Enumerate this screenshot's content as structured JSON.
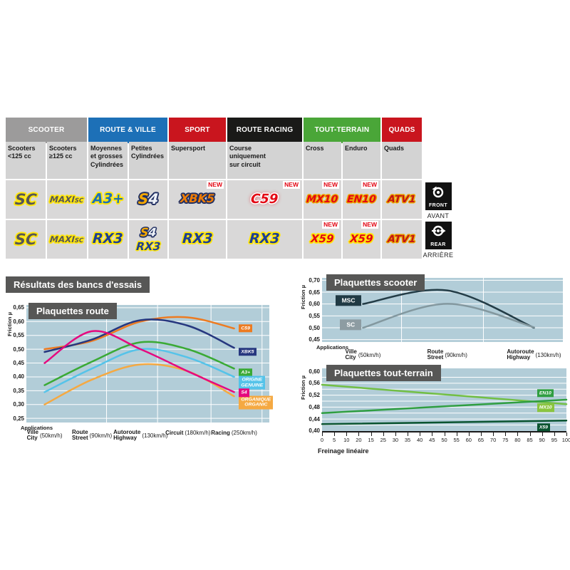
{
  "section_title": "Résultats des bancs d'essais",
  "position_badges": {
    "front": {
      "label": "FRONT",
      "sub": "AVANT"
    },
    "rear": {
      "label": "REAR",
      "sub": "ARRIÈRE"
    }
  },
  "table": {
    "category_headers": [
      {
        "label": "SCOOTER",
        "bg": "#9c9b9b",
        "span": 2
      },
      {
        "label": "ROUTE & VILLE",
        "bg": "#1d70b7",
        "span": 2
      },
      {
        "label": "SPORT",
        "bg": "#c9151e",
        "span": 1
      },
      {
        "label": "ROUTE RACING",
        "bg": "#1a1a18",
        "span": 1
      },
      {
        "label": "TOUT-TERRAIN",
        "bg": "#4aa638",
        "span": 2
      },
      {
        "label": "QUADS",
        "bg": "#c9151e",
        "span": 1
      }
    ],
    "subheaders": [
      "Scooters\n<125 cc",
      "Scooters\n≥125 cc",
      "Moyennes\net grosses\nCylindrées",
      "Petites\nCylindrées",
      "Supersport",
      "Course\nuniquement\nsur circuit",
      "Cross",
      "Enduro",
      "Quads"
    ],
    "new_badge_label": "NEW",
    "rows": [
      {
        "id": "front",
        "cells": [
          [
            "SC"
          ],
          [
            "MAXI_SC"
          ],
          [
            "A3_PLUS"
          ],
          [
            "S4"
          ],
          [
            "XBK5"
          ],
          [
            "C59"
          ],
          [
            "MX10"
          ],
          [
            "EN10"
          ],
          [
            "ATV1"
          ]
        ],
        "new_flags": [
          false,
          false,
          false,
          false,
          true,
          true,
          true,
          true,
          false
        ]
      },
      {
        "id": "rear",
        "cells": [
          [
            "SC"
          ],
          [
            "MAXI_SC"
          ],
          [
            "RX3"
          ],
          [
            "S4",
            "RX3"
          ],
          [
            "RX3"
          ],
          [
            "RX3"
          ],
          [
            "X59"
          ],
          [
            "X59"
          ],
          [
            "ATV1"
          ]
        ],
        "new_flags": [
          false,
          false,
          false,
          false,
          false,
          false,
          true,
          true,
          false
        ]
      }
    ],
    "products": {
      "SC": {
        "text": "SC"
      },
      "MAXI_SC": {
        "parts": [
          [
            "MAXI",
            "maxi-main"
          ],
          [
            "SC",
            "maxi-sub"
          ]
        ]
      },
      "A3_PLUS": {
        "text": "A3+"
      },
      "S4": {
        "parts": [
          [
            "S",
            "s4-s"
          ],
          [
            "4",
            "s4-4"
          ]
        ]
      },
      "XBK5": {
        "text": "XBK5"
      },
      "C59": {
        "text": "C59"
      },
      "MX10": {
        "text": "MX10"
      },
      "EN10": {
        "text": "EN10"
      },
      "ATV1": {
        "text": "ATV1"
      },
      "RX3": {
        "text": "RX3"
      },
      "X59": {
        "text": "X59"
      }
    }
  },
  "chart_data": [
    {
      "id": "route",
      "type": "line",
      "title": "Plaquettes route",
      "ylabel": "Friction µ",
      "x_note": "Applications",
      "ylim": [
        0.25,
        0.65
      ],
      "grid": true,
      "legend_position": "right-of-line-ends",
      "yticks": [
        {
          "v": 0.65,
          "label": "0,65"
        },
        {
          "v": 0.6,
          "label": "0,60"
        },
        {
          "v": 0.55,
          "label": "0,55"
        },
        {
          "v": 0.5,
          "label": "0,50"
        },
        {
          "v": 0.45,
          "label": "0,45"
        },
        {
          "v": 0.4,
          "label": "0,40"
        },
        {
          "v": 0.35,
          "label": "0,35"
        },
        {
          "v": 0.3,
          "label": "0,30"
        },
        {
          "v": 0.25,
          "label": "0,25"
        }
      ],
      "categories": [
        {
          "fr": "Ville",
          "en": "City",
          "speed": "(50km/h)"
        },
        {
          "fr": "Route",
          "en": "Street",
          "speed": "(90km/h)"
        },
        {
          "fr": "Autoroute",
          "en": "Highway",
          "speed": "(130km/h)"
        },
        {
          "fr": "Circuit",
          "en": "",
          "speed": "(180km/h)"
        },
        {
          "fr": "Racing",
          "en": "",
          "speed": "(250km/h)"
        }
      ],
      "series": [
        {
          "name": "C59",
          "color": "#ed7b21",
          "label_lines": [
            "C59"
          ],
          "label_bg": "#ed7b21",
          "label_y": 0.575,
          "values": [
            0.5,
            0.53,
            0.6,
            0.615,
            0.575
          ]
        },
        {
          "name": "XBK5",
          "color": "#26377f",
          "label_lines": [
            "XBK5"
          ],
          "label_bg": "#26377f",
          "label_y": 0.49,
          "values": [
            0.49,
            0.535,
            0.605,
            0.585,
            0.505
          ]
        },
        {
          "name": "A3+",
          "color": "#3aaa35",
          "label_lines": [
            "A3+"
          ],
          "label_bg": "#3aaa35",
          "label_y": 0.415,
          "values": [
            0.37,
            0.455,
            0.525,
            0.5,
            0.43
          ]
        },
        {
          "name": "ORIGINE GENUINE",
          "color": "#55c3e9",
          "label_lines": [
            "ORIGINE",
            "GENUINE"
          ],
          "label_bg": "#55c3e9",
          "label_y": 0.378,
          "values": [
            0.345,
            0.43,
            0.5,
            0.47,
            0.4
          ]
        },
        {
          "name": "ORGANIQUE ORGANIC",
          "color": "#f5a942",
          "label_lines": [
            "ORGANIQUE",
            "ORGANIC"
          ],
          "label_bg": "#f5a942",
          "label_y": 0.308,
          "values": [
            0.3,
            0.39,
            0.445,
            0.42,
            0.33
          ]
        },
        {
          "name": "S4",
          "color": "#e5097f",
          "label_lines": [
            "S4"
          ],
          "label_bg": "#e5097f",
          "label_y": 0.342,
          "values": [
            0.45,
            0.565,
            0.5,
            0.42,
            0.345
          ]
        }
      ]
    },
    {
      "id": "scooter",
      "type": "line",
      "title": "Plaquettes scooter",
      "ylabel": "Friction µ",
      "x_note": "Applications",
      "ylim": [
        0.45,
        0.7
      ],
      "grid": true,
      "legend_position": "left-of-line-starts",
      "yticks": [
        {
          "v": 0.7,
          "label": "0,70"
        },
        {
          "v": 0.65,
          "label": "0,65"
        },
        {
          "v": 0.6,
          "label": "0,60"
        },
        {
          "v": 0.55,
          "label": "0,55"
        },
        {
          "v": 0.5,
          "label": "0,50"
        },
        {
          "v": 0.45,
          "label": "0,45"
        }
      ],
      "categories": [
        {
          "fr": "Ville",
          "en": "City",
          "speed": "(50km/h)"
        },
        {
          "fr": "Route",
          "en": "Street",
          "speed": "(90km/h)"
        },
        {
          "fr": "Autoroute",
          "en": "Highway",
          "speed": "(130km/h)"
        }
      ],
      "series": [
        {
          "name": "MSC",
          "color": "#233c46",
          "label_lines": [
            "MSC"
          ],
          "label_bg": "#203a44",
          "label_y": 0.615,
          "label_x": 0.055,
          "values": [
            0.6,
            0.657,
            0.5
          ]
        },
        {
          "name": "SC",
          "color": "#83989f",
          "label_lines": [
            "SC"
          ],
          "label_bg": "#8d9ca2",
          "label_y": 0.512,
          "label_x": 0.075,
          "values": [
            0.5,
            0.601,
            0.502
          ]
        }
      ]
    },
    {
      "id": "tout-terrain",
      "type": "line",
      "title": "Plaquettes tout-terrain",
      "ylabel": "Friction µ",
      "xlabel": "Freinage linéaire",
      "ylim": [
        0.4,
        0.6
      ],
      "grid": true,
      "legend_position": "right",
      "yticks": [
        {
          "v": 0.6,
          "label": "0,60"
        },
        {
          "v": 0.56,
          "label": "0,56"
        },
        {
          "v": 0.52,
          "label": "0,52"
        },
        {
          "v": 0.48,
          "label": "0,48"
        },
        {
          "v": 0.44,
          "label": "0,44"
        },
        {
          "v": 0.4,
          "label": "0,40"
        }
      ],
      "xticks": [
        "0",
        "5",
        "10",
        "20",
        "15",
        "25",
        "30",
        "35",
        "40",
        "45",
        "50",
        "55",
        "60",
        "65",
        "70",
        "75",
        "80",
        "85",
        "90",
        "95",
        "100"
      ],
      "series": [
        {
          "name": "MX10",
          "color": "#72bf44",
          "label_lines": [
            "MX10"
          ],
          "label_bg": "#8bc53f",
          "label_y": 0.478,
          "values": [
            0.555,
            0.49
          ]
        },
        {
          "name": "EN10",
          "color": "#2f9e41",
          "label_lines": [
            "EN10"
          ],
          "label_bg": "#2f9e41",
          "label_y": 0.527,
          "values": [
            0.46,
            0.505
          ]
        },
        {
          "name": "X59",
          "color": "#0a5430",
          "label_lines": [
            "X59"
          ],
          "label_bg": "#0a5430",
          "label_y": 0.412,
          "values": [
            0.423,
            0.435
          ]
        }
      ]
    }
  ]
}
